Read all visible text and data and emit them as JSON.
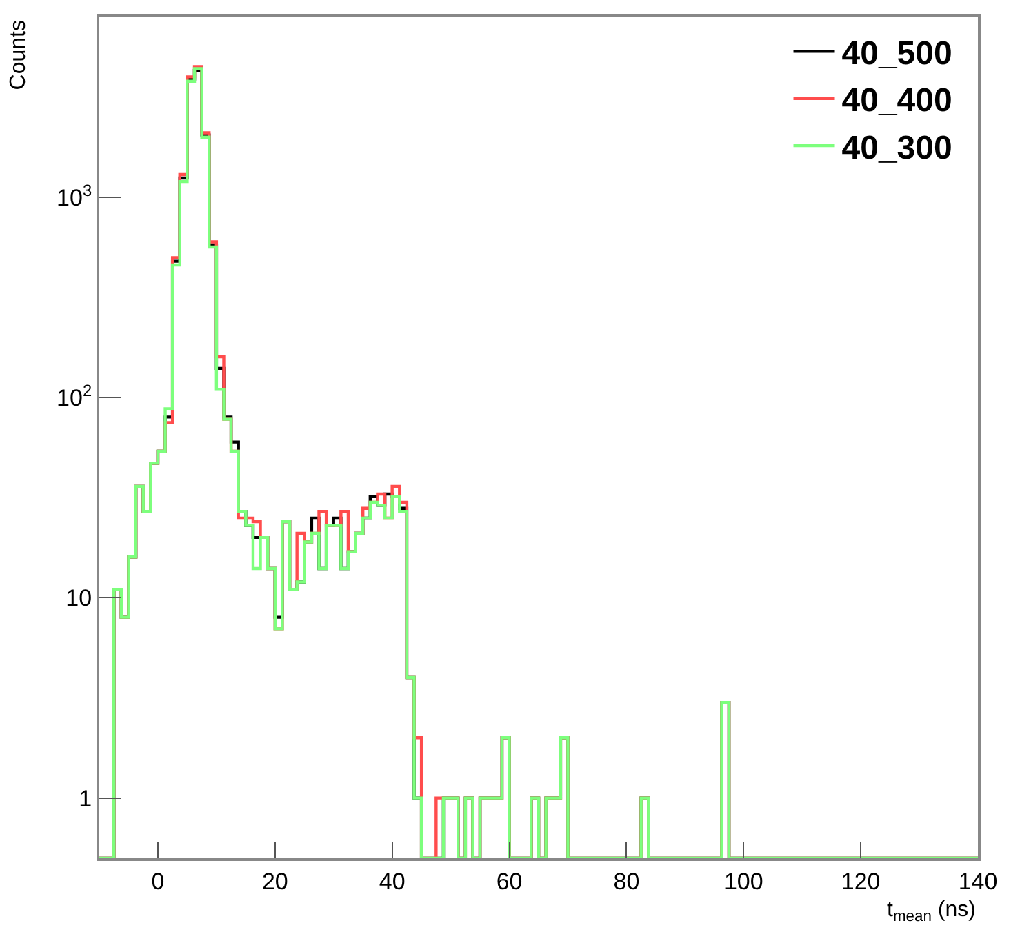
{
  "chart_data": {
    "type": "histogram",
    "xlabel": "t$_{mean}$ (ns)",
    "ylabel": "Counts",
    "bins": [
      -10,
      -8.75,
      -7.5,
      -6.25,
      -5,
      -3.75,
      -2.5,
      -1.25,
      0,
      1.25,
      2.5,
      3.75,
      5,
      6.25,
      7.5,
      8.75,
      10,
      11.25,
      12.5,
      13.75,
      15,
      16.25,
      17.5,
      18.75,
      20,
      21.25,
      22.5,
      23.75,
      25,
      26.25,
      27.5,
      28.75,
      30,
      31.25,
      32.5,
      33.75,
      35,
      36.25,
      37.5,
      38.75,
      40,
      41.25,
      42.5,
      43.75,
      45,
      46.25,
      47.5,
      48.75,
      50,
      51.25,
      52.5,
      53.75,
      55,
      56.25,
      57.5,
      58.75,
      60,
      61.25,
      62.5,
      63.75,
      65,
      66.25,
      67.5,
      68.75,
      70,
      71.25,
      72.5,
      73.75,
      75,
      76.25,
      77.5,
      78.75,
      80,
      81.25,
      82.5,
      83.75,
      85,
      86.25,
      87.5,
      88.75,
      90,
      91.25,
      92.5,
      93.75,
      95,
      96.25,
      97.5,
      98.75,
      100,
      101.25,
      102.5,
      103.75,
      105,
      106.25,
      107.5,
      108.75,
      110,
      111.25,
      112.5,
      113.75,
      115,
      116.25,
      117.5,
      118.75,
      120,
      121.25,
      122.5,
      123.75,
      125,
      126.25,
      127.5,
      128.75,
      130,
      131.25,
      132.5,
      133.75,
      135,
      136.25,
      137.5,
      138.75,
      140
    ],
    "series": [
      {
        "name": "40_500",
        "color": "#000000",
        "values": [
          null,
          null,
          11,
          8,
          16,
          36,
          27,
          47,
          54,
          80,
          480,
          1250,
          3900,
          4300,
          2050,
          580,
          140,
          80,
          60,
          27,
          23,
          20,
          20,
          14,
          8,
          24,
          11,
          12,
          19,
          25,
          14,
          23,
          25,
          14,
          17,
          21,
          25,
          32,
          29,
          33,
          32,
          28,
          4,
          1,
          null,
          null,
          null,
          1,
          1,
          null,
          1,
          null,
          1,
          1,
          1,
          2,
          null,
          null,
          null,
          1,
          null,
          1,
          1,
          2,
          null,
          null,
          null,
          null,
          null,
          null,
          null,
          null,
          null,
          null,
          1,
          null,
          null,
          null,
          null,
          null,
          null,
          null,
          null,
          null,
          null,
          3,
          null,
          null,
          null,
          null,
          null,
          null,
          null,
          null,
          null,
          null,
          null,
          null,
          null,
          null,
          null,
          null,
          null,
          null,
          null,
          null,
          null,
          null,
          null,
          null,
          null,
          null,
          null,
          null,
          null,
          null,
          null,
          null,
          null,
          null
        ]
      },
      {
        "name": "40_400",
        "color": "#ff4d4d",
        "values": [
          null,
          null,
          11,
          8,
          16,
          36,
          27,
          47,
          54,
          75,
          500,
          1300,
          4000,
          4500,
          2100,
          600,
          160,
          78,
          54,
          25,
          25,
          24,
          20,
          14,
          7,
          24,
          11,
          21,
          19,
          21,
          27,
          23,
          23,
          27,
          17,
          21,
          28,
          30,
          33,
          25,
          36,
          30,
          4,
          2,
          null,
          null,
          1,
          1,
          1,
          null,
          1,
          null,
          1,
          1,
          1,
          2,
          null,
          null,
          null,
          1,
          null,
          1,
          1,
          2,
          null,
          null,
          null,
          null,
          null,
          null,
          null,
          null,
          null,
          null,
          1,
          null,
          null,
          null,
          null,
          null,
          null,
          null,
          null,
          null,
          null,
          3,
          null,
          null,
          null,
          null,
          null,
          null,
          null,
          null,
          null,
          null,
          null,
          null,
          null,
          null,
          null,
          null,
          null,
          null,
          null,
          null,
          null,
          null,
          null,
          null,
          null,
          null,
          null,
          null,
          null,
          null,
          null,
          null,
          null,
          null
        ]
      },
      {
        "name": "40_300",
        "color": "#7dff7d",
        "values": [
          null,
          null,
          11,
          8,
          16,
          36,
          27,
          47,
          54,
          88,
          460,
          1200,
          3800,
          4400,
          2000,
          565,
          110,
          78,
          54,
          27,
          23,
          14,
          20,
          14,
          7,
          24,
          11,
          12,
          19,
          21,
          14,
          23,
          23,
          14,
          17,
          21,
          25,
          30,
          29,
          25,
          32,
          27,
          4,
          1,
          null,
          null,
          null,
          1,
          1,
          null,
          1,
          null,
          1,
          1,
          1,
          2,
          null,
          null,
          null,
          1,
          null,
          1,
          1,
          2,
          null,
          null,
          null,
          null,
          null,
          null,
          null,
          null,
          null,
          null,
          1,
          null,
          null,
          null,
          null,
          null,
          null,
          null,
          null,
          null,
          null,
          3,
          null,
          null,
          null,
          null,
          null,
          null,
          null,
          null,
          null,
          null,
          null,
          null,
          null,
          null,
          null,
          null,
          null,
          null,
          null,
          null,
          null,
          null,
          null,
          null,
          null,
          null,
          null,
          null,
          null,
          null,
          null,
          null,
          null,
          null
        ]
      }
    ],
    "xlim": [
      -10,
      140
    ],
    "xticks": [
      0,
      20,
      40,
      60,
      80,
      100,
      120,
      140
    ],
    "ylim": [
      0.5,
      8000
    ],
    "yticks": [
      1,
      10,
      {
        "value": 100,
        "label": "10$^{2}$"
      },
      {
        "value": 1000,
        "label": "10$^{3}$"
      }
    ],
    "log": true,
    "legend": "top right"
  }
}
